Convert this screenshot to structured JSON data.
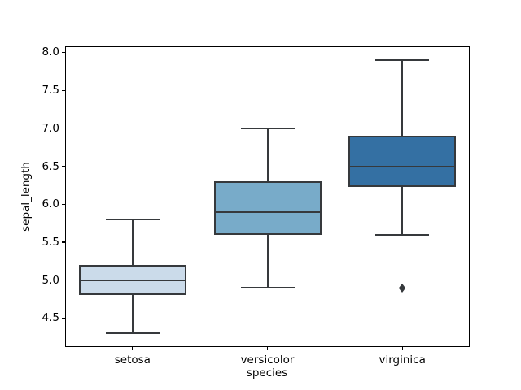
{
  "figure": {
    "background": "#ffffff",
    "spine_color": "#000000",
    "line_color": "#36393c",
    "text_color": "#000000"
  },
  "axes": {
    "ylabel": "sepal_length",
    "xlabel": "species",
    "yticks": [
      4.5,
      5.0,
      5.5,
      6.0,
      6.5,
      7.0,
      7.5,
      8.0
    ],
    "ytick_labels": [
      "4.5",
      "5.0",
      "5.5",
      "6.0",
      "6.5",
      "7.0",
      "7.5",
      "8.0"
    ],
    "ylim": [
      4.12,
      8.08
    ]
  },
  "chart_data": {
    "type": "box",
    "title": "",
    "xlabel": "species",
    "ylabel": "sepal_length",
    "categories": [
      "setosa",
      "versicolor",
      "virginica"
    ],
    "series": [
      {
        "category": "setosa",
        "whisker_low": 4.3,
        "q1": 4.8,
        "median": 5.0,
        "q3": 5.2,
        "whisker_high": 5.8,
        "outliers": [],
        "fill": "#cbdbea"
      },
      {
        "category": "versicolor",
        "whisker_low": 4.9,
        "q1": 5.6,
        "median": 5.9,
        "q3": 6.3,
        "whisker_high": 7.0,
        "outliers": [],
        "fill": "#78abc9"
      },
      {
        "category": "virginica",
        "whisker_low": 5.6,
        "q1": 6.225,
        "median": 6.5,
        "q3": 6.9,
        "whisker_high": 7.9,
        "outliers": [
          4.9
        ],
        "fill": "#3470a3"
      }
    ],
    "ylim": [
      4.12,
      8.08
    ],
    "grid": false,
    "legend": false,
    "box_colors": [
      "#cbdbea",
      "#78abc9",
      "#3470a3"
    ],
    "edge_color": "#36393c"
  }
}
